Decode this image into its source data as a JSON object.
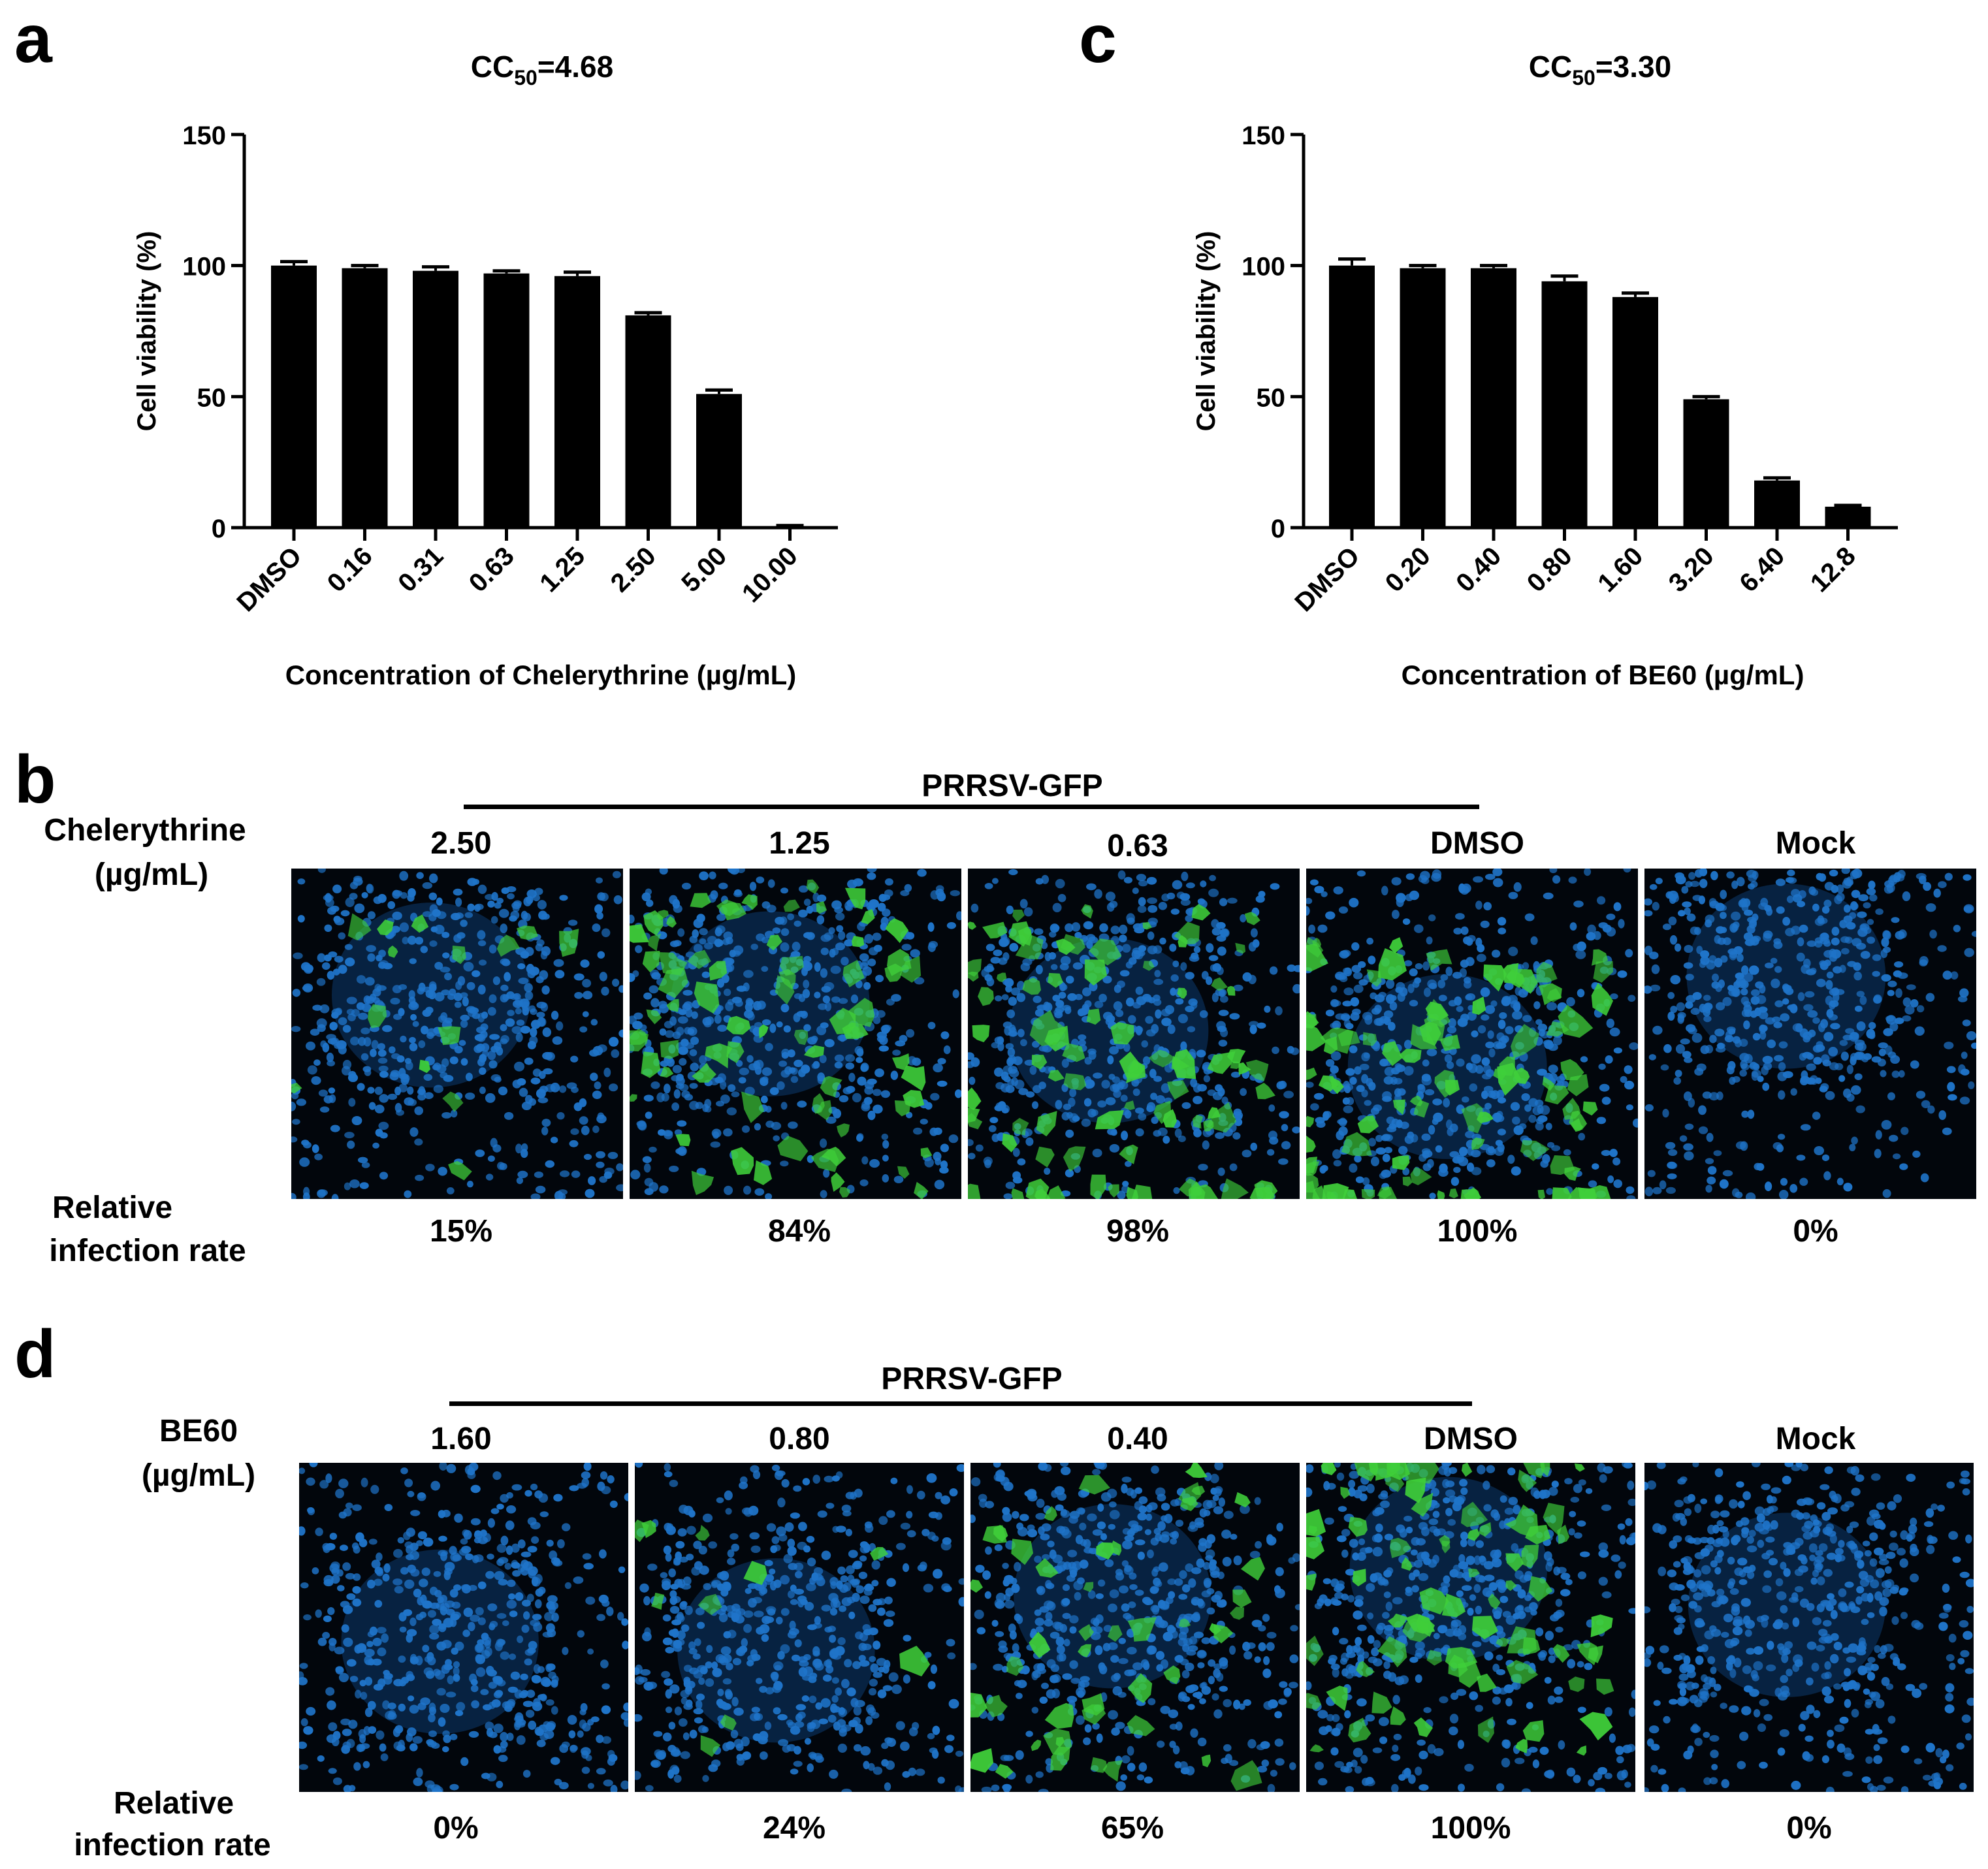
{
  "panels": {
    "a": "a",
    "b": "b",
    "c": "c",
    "d": "d"
  },
  "chart_data": [
    {
      "type": "bar",
      "panel": "a",
      "title_main": "CC",
      "title_sub": "50",
      "title_rest": "=4.68",
      "ylabel": "Cell viability (%)",
      "xlabel": "Concentration of Chelerythrine (µg/mL)",
      "categories": [
        "DMSO",
        "0.16",
        "0.31",
        "0.63",
        "1.25",
        "2.50",
        "5.00",
        "10.00"
      ],
      "values": [
        100,
        99,
        98,
        97,
        96,
        81,
        51,
        0.5
      ],
      "errors": [
        1.5,
        1.0,
        1.5,
        1.0,
        1.5,
        1.0,
        1.5,
        0.3
      ],
      "ylim": [
        0,
        150
      ],
      "yticks": [
        "0",
        "50",
        "100",
        "150"
      ],
      "color": "#000000"
    },
    {
      "type": "bar",
      "panel": "c",
      "title_main": "CC",
      "title_sub": "50",
      "title_rest": "=3.30",
      "ylabel": "Cell viability (%)",
      "xlabel": "Concentration of BE60 (µg/mL)",
      "categories": [
        "DMSO",
        "0.20",
        "0.40",
        "0.80",
        "1.60",
        "3.20",
        "6.40",
        "12.8"
      ],
      "values": [
        100,
        99,
        99,
        94,
        88,
        49,
        18,
        8
      ],
      "errors": [
        2.5,
        1.0,
        1.0,
        2.0,
        1.5,
        1.0,
        1.0,
        0.5
      ],
      "ylim": [
        0,
        150
      ],
      "yticks": [
        "0",
        "50",
        "100",
        "150"
      ],
      "color": "#000000"
    }
  ],
  "panel_b": {
    "virus_label": "PRRSV-GFP",
    "drug_label_line1": "Chelerythrine",
    "drug_label_line2": "(µg/mL)",
    "rate_label_line1": "Relative",
    "rate_label_line2": "infection rate",
    "columns": [
      "2.50",
      "1.25",
      "0.63",
      "DMSO",
      "Mock"
    ],
    "rates": [
      "15%",
      "84%",
      "98%",
      "100%",
      "0%"
    ]
  },
  "panel_d": {
    "virus_label": "PRRSV-GFP",
    "drug_label_line1": "BE60",
    "drug_label_line2": "(µg/mL)",
    "rate_label_line1": "Relative",
    "rate_label_line2": "infection rate",
    "columns": [
      "1.60",
      "0.80",
      "0.40",
      "DMSO",
      "Mock"
    ],
    "rates": [
      "0%",
      "24%",
      "65%",
      "100%",
      "0%"
    ]
  },
  "micrograph_colors": {
    "background": "#02060c",
    "nuclei": "#1f74c9",
    "gfp": "#3fcf3a"
  }
}
